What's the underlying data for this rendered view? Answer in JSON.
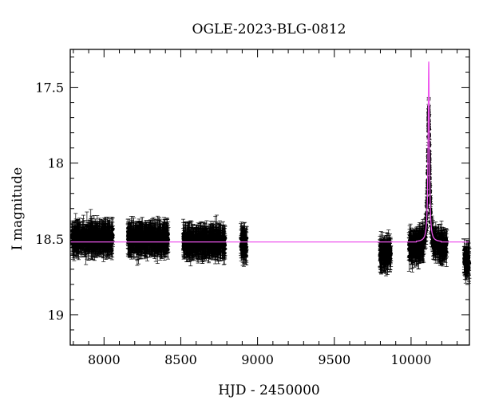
{
  "chart_data": {
    "type": "scatter",
    "title": "OGLE-2023-BLG-0812",
    "xlabel": "HJD - 2450000",
    "ylabel": "I magnitude",
    "xlim": [
      7780,
      10380
    ],
    "ylim": [
      19.2,
      17.25
    ],
    "y_inverted": true,
    "x_ticks": [
      8000,
      8500,
      9000,
      9500,
      10000
    ],
    "x_tick_labels": [
      "8000",
      "8500",
      "9000",
      "9500",
      "10000"
    ],
    "y_ticks": [
      17.5,
      18,
      18.5,
      19
    ],
    "y_tick_labels": [
      "17.5",
      "18",
      "18.5",
      "19"
    ],
    "legend": "none",
    "grid": false,
    "colors": {
      "data": "#000000",
      "model": "#ee55ee"
    },
    "series": [
      {
        "kind": "observations",
        "marker": "filled-circle-with-errorbars",
        "seasons": [
          {
            "x_range": [
              7790,
              8060
            ],
            "mean_mag": 18.5
          },
          {
            "x_range": [
              8155,
              8420
            ],
            "mean_mag": 18.5
          },
          {
            "x_range": [
              8515,
              8790
            ],
            "mean_mag": 18.52
          },
          {
            "x_range": [
              8890,
              8930
            ],
            "mean_mag": 18.53
          },
          {
            "x_range": [
              9795,
              9870
            ],
            "mean_mag": 18.6
          },
          {
            "x_range": [
              9985,
              10235
            ],
            "mean_mag": 18.55
          },
          {
            "x_range": [
              10345,
              10380
            ],
            "mean_mag": 18.65
          }
        ],
        "peak": {
          "x": 10115,
          "mag": 17.65
        }
      },
      {
        "kind": "model",
        "baseline_mag": 18.52,
        "peak_x": 10115,
        "peak_mag": 17.33
      }
    ]
  }
}
